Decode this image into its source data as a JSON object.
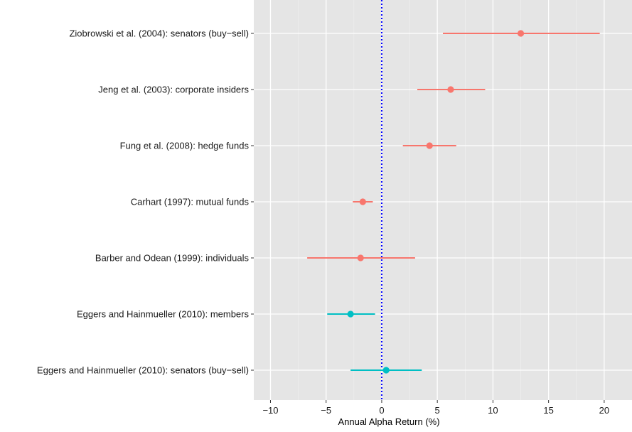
{
  "chart_data": {
    "type": "scatter",
    "subtype": "forest-plot",
    "title": "",
    "xlabel": "Annual Alpha Return (%)",
    "ylabel": "",
    "xlim": [
      -11.5,
      22.5
    ],
    "x_ticks": [
      -10,
      -5,
      0,
      5,
      10,
      15,
      20
    ],
    "x_tick_labels": [
      "−10",
      "−5",
      "0",
      "5",
      "10",
      "15",
      "20"
    ],
    "grid": true,
    "legend": "none",
    "reference_line": {
      "x": 0,
      "style": "dotted",
      "color": "#0000ff"
    },
    "colors": {
      "red": "#f8766d",
      "teal": "#00bfc4",
      "panel": "#e5e5e5",
      "grid": "#ffffff"
    },
    "rows": [
      {
        "label": "Ziobrowski et al. (2004): senators (buy−sell)",
        "estimate": 12.5,
        "low": 5.5,
        "high": 19.6,
        "color": "red"
      },
      {
        "label": "Jeng et al. (2003): corporate insiders",
        "estimate": 6.2,
        "low": 3.2,
        "high": 9.3,
        "color": "red"
      },
      {
        "label": "Fung et al. (2008): hedge funds",
        "estimate": 4.3,
        "low": 1.9,
        "high": 6.7,
        "color": "red"
      },
      {
        "label": "Carhart (1997): mutual funds",
        "estimate": -1.7,
        "low": -2.6,
        "high": -0.8,
        "color": "red"
      },
      {
        "label": "Barber and Odean (1999): individuals",
        "estimate": -1.9,
        "low": -6.7,
        "high": 3.0,
        "color": "red"
      },
      {
        "label": "Eggers and Hainmueller (2010): members",
        "estimate": -2.8,
        "low": -4.9,
        "high": -0.6,
        "color": "teal"
      },
      {
        "label": "Eggers and Hainmueller (2010): senators (buy−sell)",
        "estimate": 0.4,
        "low": -2.8,
        "high": 3.6,
        "color": "teal"
      }
    ]
  }
}
